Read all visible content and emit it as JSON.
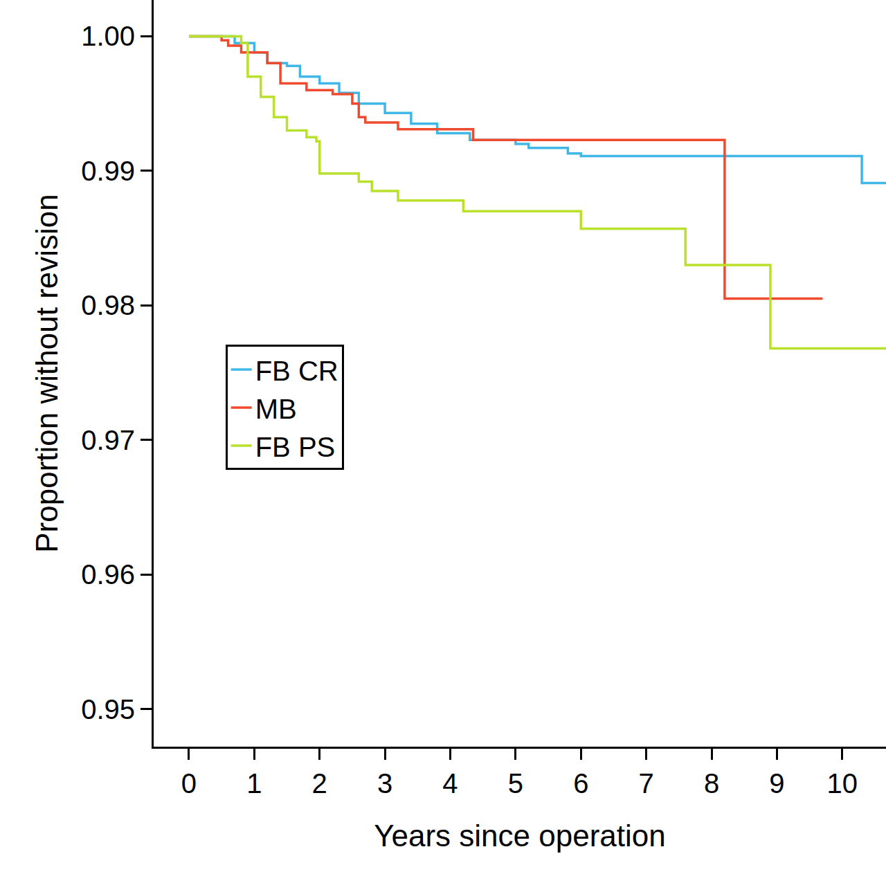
{
  "chart_data": {
    "type": "line",
    "line_style": "step",
    "x_label": "Years since operation",
    "y_label": "Proportion without revision",
    "xlim": [
      -0.54,
      10.67
    ],
    "xticks": [
      0,
      1,
      2,
      3,
      4,
      5,
      6,
      7,
      8,
      9,
      10
    ],
    "ylim": [
      0.9472,
      1.0027
    ],
    "yticks": [
      {
        "value": 0.95,
        "label": "0.95"
      },
      {
        "value": 0.96,
        "label": "0.96"
      },
      {
        "value": 0.97,
        "label": "0.97"
      },
      {
        "value": 0.98,
        "label": "0.98"
      },
      {
        "value": 0.99,
        "label": "0.99"
      },
      {
        "value": 1.0,
        "label": "1.00"
      }
    ],
    "grid": false,
    "legend": "left",
    "series": [
      {
        "name": "FB CR",
        "color": "#3fb8e8",
        "x": [
          0,
          0.7,
          1.0,
          1.2,
          1.5,
          1.7,
          2.0,
          2.3,
          2.6,
          3.0,
          3.4,
          3.8,
          4.3,
          5.0,
          5.2,
          5.8,
          6.0,
          10.3,
          10.67
        ],
        "values": [
          1.0,
          0.9995,
          0.9988,
          0.998,
          0.9978,
          0.997,
          0.9965,
          0.9958,
          0.995,
          0.9943,
          0.9935,
          0.9928,
          0.9923,
          0.992,
          0.9917,
          0.9913,
          0.9911,
          0.9891,
          0.9891
        ]
      },
      {
        "name": "MB",
        "color": "#f04a2e",
        "x": [
          0,
          0.5,
          0.6,
          0.8,
          1.2,
          1.4,
          1.8,
          2.2,
          2.5,
          2.6,
          2.7,
          3.2,
          4.35,
          8.2,
          9.7
        ],
        "values": [
          1.0,
          0.9997,
          0.9993,
          0.9988,
          0.998,
          0.9965,
          0.996,
          0.9957,
          0.995,
          0.994,
          0.9936,
          0.9931,
          0.9923,
          0.9805,
          0.9805
        ]
      },
      {
        "name": "FB PS",
        "color": "#b9e02a",
        "x": [
          0,
          0.8,
          0.9,
          1.1,
          1.3,
          1.5,
          1.8,
          1.95,
          2.0,
          2.6,
          2.8,
          3.2,
          4.2,
          6.0,
          7.6,
          8.9,
          10.67
        ],
        "values": [
          1.0,
          0.9995,
          0.997,
          0.9955,
          0.994,
          0.993,
          0.9925,
          0.9922,
          0.9898,
          0.9892,
          0.9885,
          0.9878,
          0.987,
          0.9857,
          0.983,
          0.9768,
          0.9768
        ]
      }
    ]
  }
}
